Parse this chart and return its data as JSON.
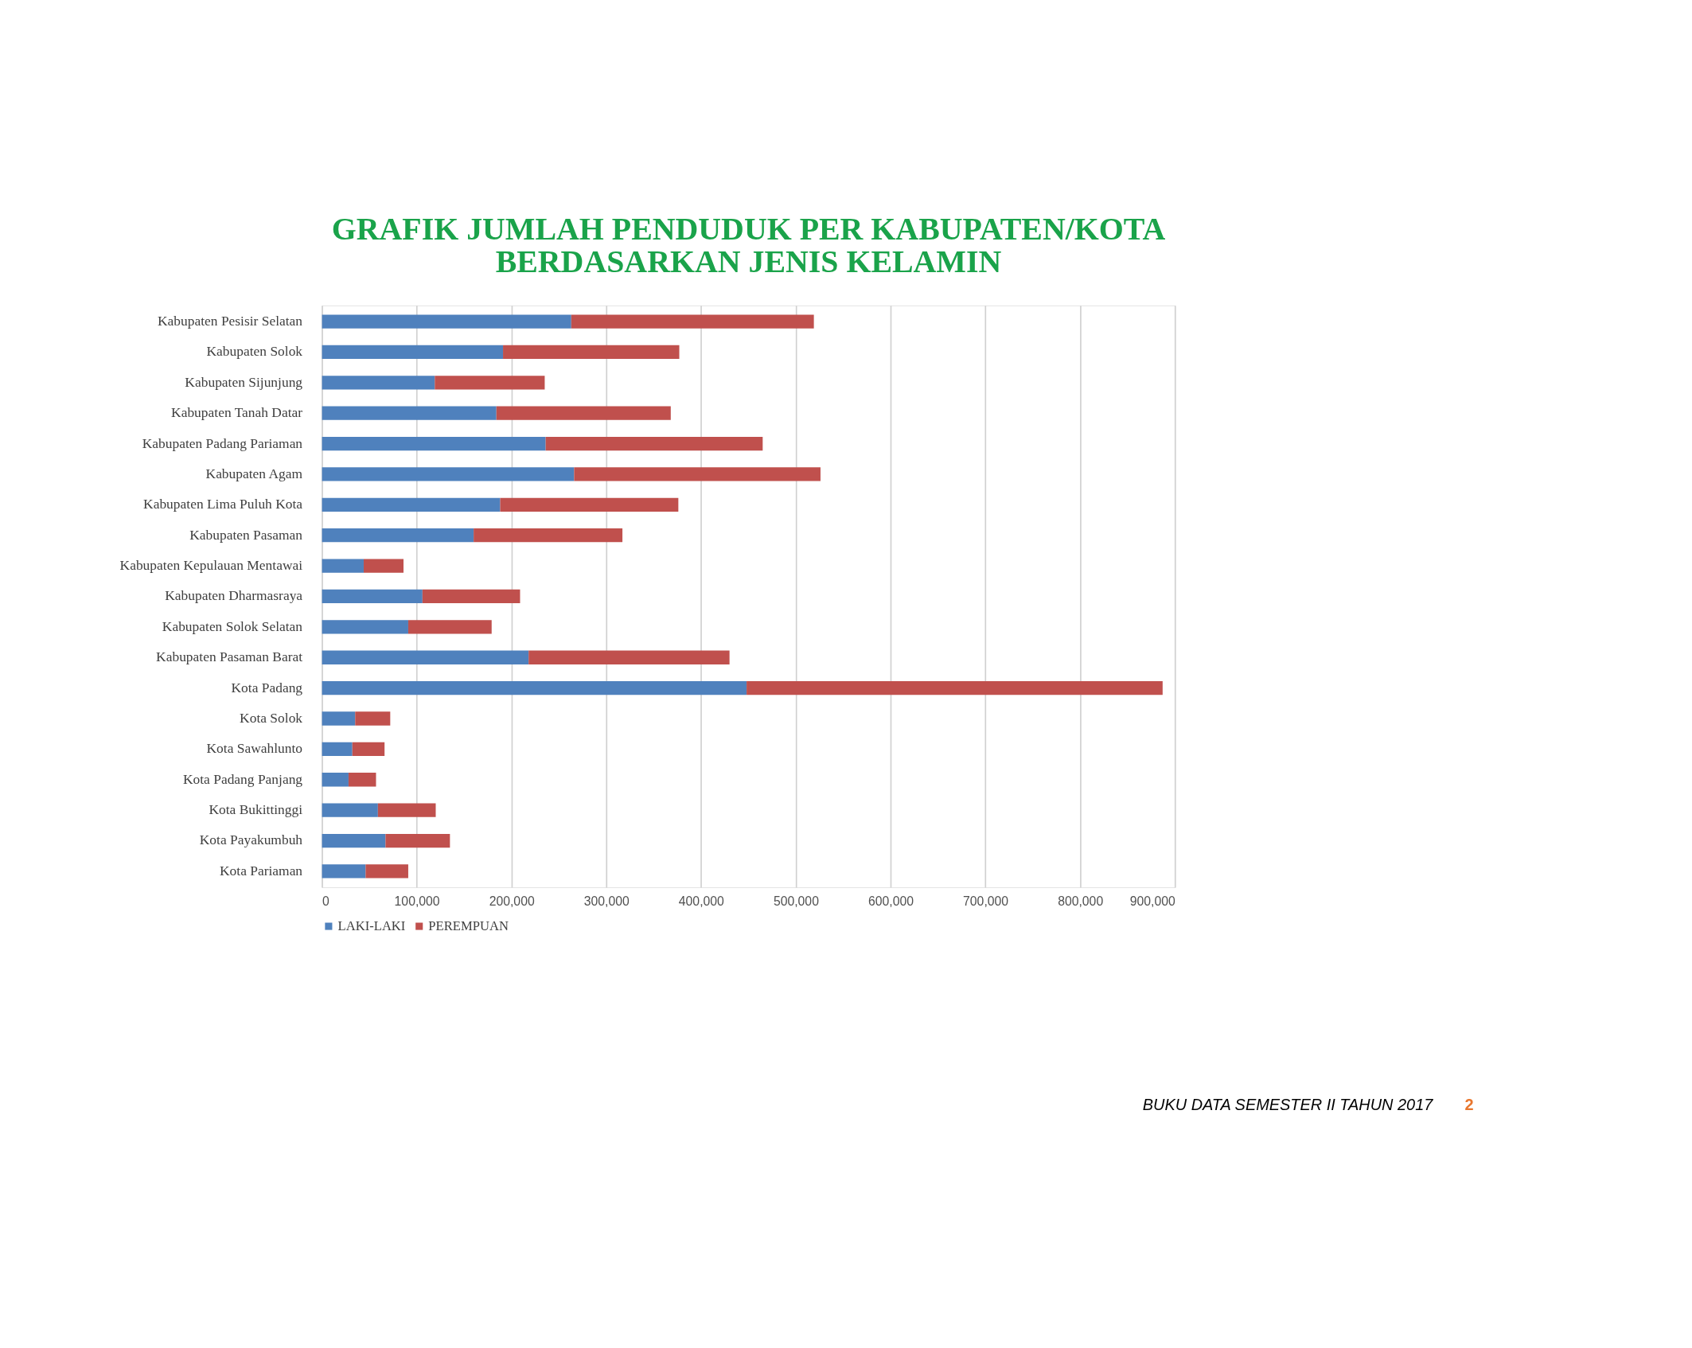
{
  "chart_data": {
    "type": "bar",
    "orientation": "horizontal",
    "stacked": true,
    "title": [
      "GRAFIK JUMLAH PENDUDUK PER KABUPATEN/KOTA",
      "BERDASARKAN JENIS KELAMIN"
    ],
    "categories": [
      "Kabupaten Pesisir Selatan",
      "Kabupaten Solok",
      "Kabupaten Sijunjung",
      "Kabupaten Tanah Datar",
      "Kabupaten Padang Pariaman",
      "Kabupaten Agam",
      "Kabupaten Lima Puluh Kota",
      "Kabupaten Pasaman",
      "Kabupaten Kepulauan Mentawai",
      "Kabupaten Dharmasraya",
      "Kabupaten Solok Selatan",
      "Kabupaten Pasaman Barat",
      "Kota Padang",
      "Kota Solok",
      "Kota Sawahlunto",
      "Kota Padang Panjang",
      "Kota Bukittinggi",
      "Kota Payakumbuh",
      "Kota Pariaman"
    ],
    "series": [
      {
        "name": "LAKI-LAKI",
        "color": "#4f81bd",
        "values": [
          263000,
          191000,
          119000,
          184000,
          236000,
          266000,
          188000,
          160000,
          44000,
          106000,
          91000,
          218000,
          448000,
          35000,
          32000,
          28000,
          59000,
          67000,
          46000
        ]
      },
      {
        "name": "PEREMPUAN",
        "color": "#c0504d",
        "values": [
          256000,
          186000,
          116000,
          184000,
          229000,
          260000,
          188000,
          157000,
          42000,
          103000,
          88000,
          212000,
          439000,
          37000,
          34000,
          29000,
          61000,
          68000,
          45000
        ]
      }
    ],
    "xlim": [
      0,
      900000
    ],
    "xticks": [
      0,
      {
        "value": 100000,
        "label": "100,000"
      },
      {
        "value": 200000,
        "label": "200,000"
      },
      {
        "value": 300000,
        "label": "300,000"
      },
      {
        "value": 400000,
        "label": "400,000"
      },
      {
        "value": 500000,
        "label": "500,000"
      },
      {
        "value": 600000,
        "label": "600,000"
      },
      {
        "value": 700000,
        "label": "700,000"
      },
      {
        "value": 800000,
        "label": "800,000"
      },
      {
        "value": 900000,
        "label": "900,000"
      }
    ],
    "grid": "x",
    "legend": "bottom",
    "annotations": [
      "BUKU DATA SEMESTER II TAHUN 2017",
      "2"
    ]
  }
}
